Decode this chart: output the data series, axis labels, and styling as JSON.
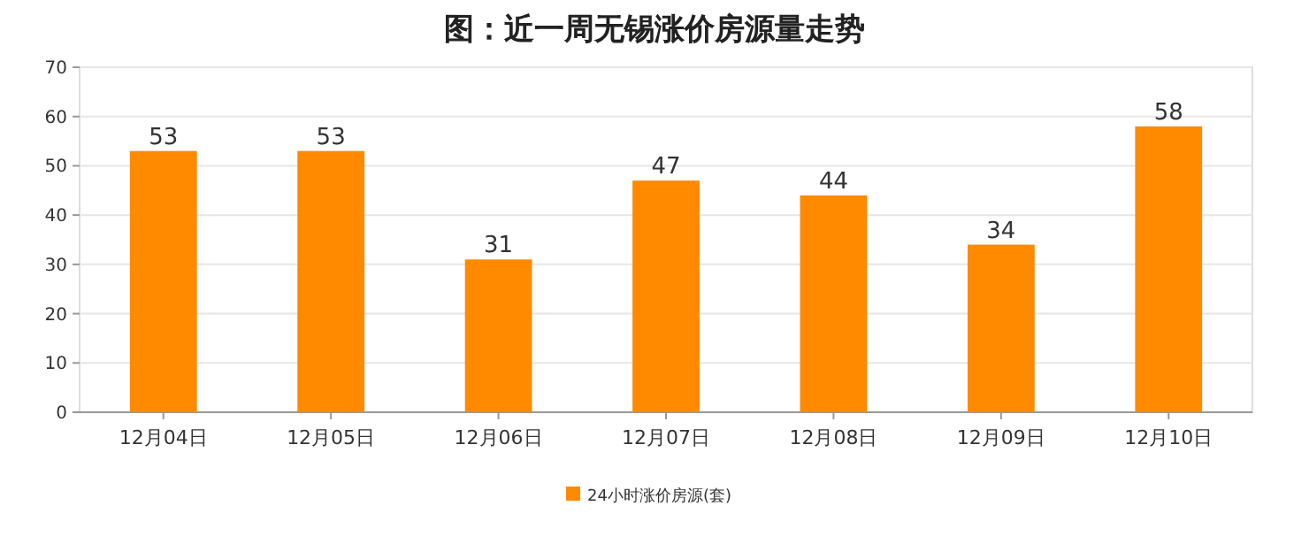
{
  "chart_data": {
    "type": "bar",
    "title": "图：近一周无锡涨价房源量走势",
    "categories": [
      "12月04日",
      "12月05日",
      "12月06日",
      "12月07日",
      "12月08日",
      "12月09日",
      "12月10日"
    ],
    "series": [
      {
        "name": "24小时涨价房源(套)",
        "color": "#ff8a00",
        "values": [
          53,
          53,
          31,
          47,
          44,
          34,
          58
        ]
      }
    ],
    "ylim": [
      0,
      70
    ],
    "yticks": [
      0,
      10,
      20,
      30,
      40,
      50,
      60,
      70
    ],
    "grid": "y",
    "legend": "bottom",
    "data_labels": true
  }
}
